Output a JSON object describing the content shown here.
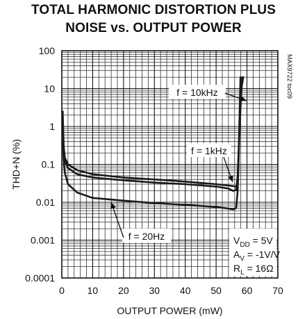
{
  "chart_data": {
    "type": "line",
    "title_lines": [
      "TOTAL HARMONIC DISTORTION PLUS",
      "NOISE vs. OUTPUT POWER"
    ],
    "xlabel": "OUTPUT POWER (mW)",
    "ylabel": "THD+N (%)",
    "xlim": [
      0,
      70
    ],
    "ylim": [
      0.0001,
      100
    ],
    "y_scale": "log",
    "x_ticks": [
      "0",
      "10",
      "20",
      "30",
      "40",
      "50",
      "60",
      "70"
    ],
    "y_ticks": [
      "0.0001",
      "0.001",
      "0.01",
      "0.1",
      "1",
      "10",
      "100"
    ],
    "grid": true,
    "watermark": "MAX9722 toc09",
    "conditions": {
      "vdd": {
        "main": "V",
        "sub": "DD",
        "rest": " = 5V"
      },
      "av": {
        "main": "A",
        "sub": "V",
        "rest": " = -1V/V"
      },
      "rl": {
        "main": "R",
        "sub": "L",
        "rest": " = 16Ω"
      }
    },
    "series": [
      {
        "name": "f = 10kHz",
        "points": [
          [
            0.3,
            1.2
          ],
          [
            0.6,
            0.3
          ],
          [
            1,
            0.15
          ],
          [
            2,
            0.1
          ],
          [
            5,
            0.07
          ],
          [
            10,
            0.055
          ],
          [
            20,
            0.045
          ],
          [
            30,
            0.04
          ],
          [
            40,
            0.035
          ],
          [
            50,
            0.03
          ],
          [
            55,
            0.027
          ],
          [
            56.5,
            0.026
          ],
          [
            57,
            0.03
          ],
          [
            57.3,
            0.2
          ],
          [
            57.6,
            2
          ],
          [
            57.9,
            20
          ]
        ]
      },
      {
        "name": "f = 1kHz",
        "points": [
          [
            0.3,
            2.5
          ],
          [
            0.6,
            0.25
          ],
          [
            1,
            0.12
          ],
          [
            2,
            0.08
          ],
          [
            5,
            0.055
          ],
          [
            10,
            0.045
          ],
          [
            20,
            0.038
          ],
          [
            30,
            0.033
          ],
          [
            40,
            0.03
          ],
          [
            50,
            0.026
          ],
          [
            54,
            0.023
          ],
          [
            55.5,
            0.02
          ],
          [
            56.5,
            0.021
          ],
          [
            57,
            0.05
          ],
          [
            57.6,
            1
          ],
          [
            58.2,
            10
          ],
          [
            58.8,
            20
          ]
        ]
      },
      {
        "name": "f = 20Hz",
        "points": [
          [
            0.3,
            0.5
          ],
          [
            0.6,
            0.12
          ],
          [
            1,
            0.06
          ],
          [
            2,
            0.03
          ],
          [
            5,
            0.018
          ],
          [
            10,
            0.013
          ],
          [
            20,
            0.011
          ],
          [
            30,
            0.0095
          ],
          [
            40,
            0.0085
          ],
          [
            50,
            0.0075
          ],
          [
            54,
            0.0068
          ],
          [
            55.5,
            0.0065
          ],
          [
            56.5,
            0.007
          ],
          [
            57,
            0.02
          ],
          [
            57.5,
            0.5
          ],
          [
            58,
            5
          ],
          [
            58.5,
            20
          ]
        ]
      }
    ],
    "annotations": [
      {
        "text": "f = 10kHz",
        "series": 0
      },
      {
        "text": "f = 1kHz",
        "series": 1
      },
      {
        "text": "f = 20Hz",
        "series": 2
      }
    ]
  }
}
